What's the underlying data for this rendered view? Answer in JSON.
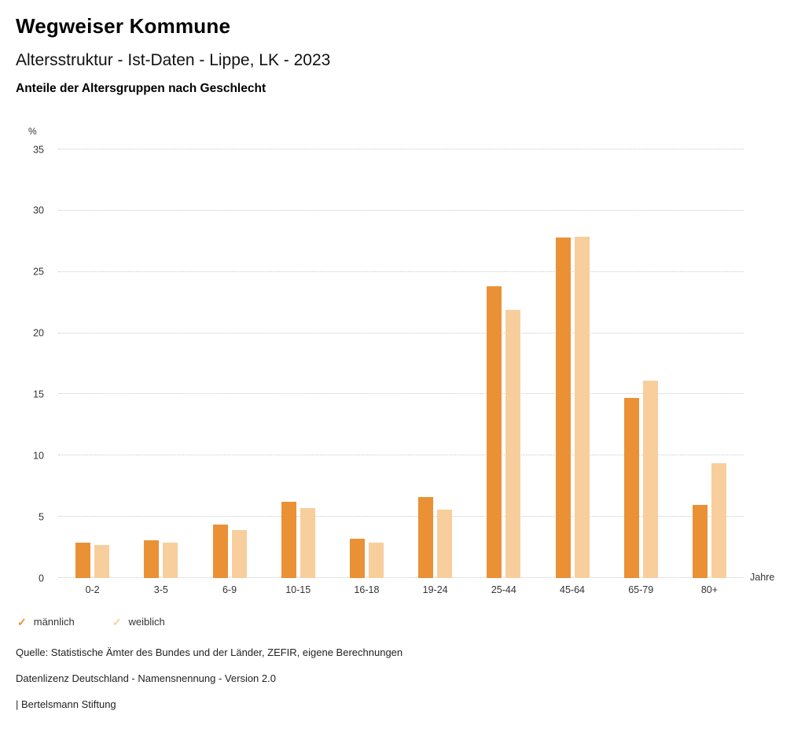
{
  "header": {
    "title": "Wegweiser Kommune",
    "subtitle": "Altersstruktur - Ist-Daten - Lippe, LK - 2023",
    "chart_title": "Anteile der Altersgruppen nach Geschlecht"
  },
  "chart_data": {
    "type": "bar",
    "title": "Anteile der Altersgruppen nach Geschlecht",
    "unit_label": "%",
    "x_unit_label": "Jahre",
    "categories": [
      "0-2",
      "3-5",
      "6-9",
      "10-15",
      "16-18",
      "19-24",
      "25-44",
      "45-64",
      "65-79",
      "80+"
    ],
    "series": [
      {
        "name": "männlich",
        "color": "#EA9136",
        "values": [
          2.9,
          3.1,
          4.4,
          6.2,
          3.2,
          6.6,
          23.8,
          27.8,
          14.7,
          6.0
        ]
      },
      {
        "name": "weiblich",
        "color": "#F8CE9C",
        "values": [
          2.7,
          2.9,
          3.9,
          5.7,
          2.9,
          5.6,
          21.9,
          27.9,
          16.1,
          9.4
        ]
      }
    ],
    "ylim": [
      0,
      35
    ],
    "yticks": [
      0,
      5,
      10,
      15,
      20,
      25,
      30,
      35
    ],
    "grid": true,
    "legend_position": "bottom"
  },
  "legend": {
    "items": [
      {
        "label": "männlich",
        "color": "#EA9136"
      },
      {
        "label": "weiblich",
        "color": "#F8CE9C"
      }
    ]
  },
  "footer": {
    "source": "Quelle: Statistische Ämter des Bundes und der Länder, ZEFIR, eigene Berechnungen",
    "license": "Datenlizenz Deutschland - Namensnennung - Version 2.0",
    "attribution": "| Bertelsmann Stiftung"
  }
}
